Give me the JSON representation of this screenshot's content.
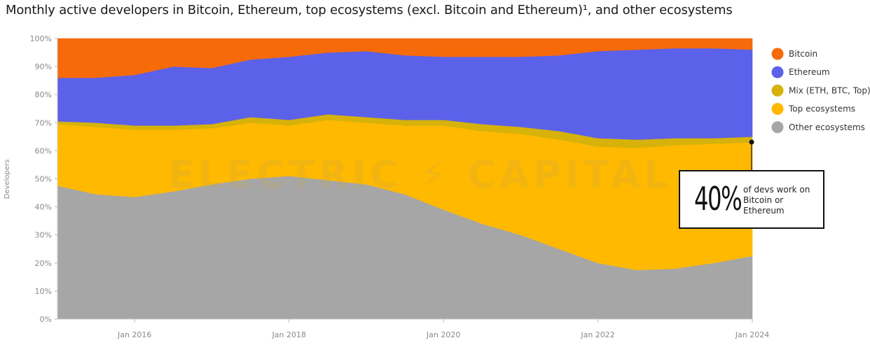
{
  "title": "Monthly active developers in Bitcoin, Ethereum, top ecosystems (excl. Bitcoin and Ethereum)¹, and other ecosystems",
  "watermark": "ELECTRIC ⚡ CAPITAL",
  "callout": {
    "value": "40%",
    "text": "of devs work on Bitcoin or Ethereum"
  },
  "colors": {
    "bitcoin": "#f76a0a",
    "ethereum": "#5b61e8",
    "mix": "#d6b20a",
    "top": "#ffb900",
    "other": "#a6a6a6"
  },
  "chart_data": {
    "type": "area",
    "stacked": true,
    "title": "Monthly active developers in Bitcoin, Ethereum, top ecosystems (excl. Bitcoin and Ethereum)¹, and other ecosystems",
    "xlabel": "",
    "ylabel": "Developers",
    "ylim": [
      0,
      100
    ],
    "y_ticks": [
      "0%",
      "10%",
      "20%",
      "30%",
      "40%",
      "50%",
      "60%",
      "70%",
      "80%",
      "90%",
      "100%"
    ],
    "x_ticks": [
      "Jan 2016",
      "Jan 2018",
      "Jan 2020",
      "Jan 2022",
      "Jan 2024"
    ],
    "x_range": [
      "2015-01",
      "2024-01"
    ],
    "legend_position": "right",
    "x": [
      "2015-01",
      "2015-07",
      "2016-01",
      "2016-07",
      "2017-01",
      "2017-07",
      "2018-01",
      "2018-07",
      "2019-01",
      "2019-07",
      "2020-01",
      "2020-07",
      "2021-01",
      "2021-07",
      "2022-01",
      "2022-07",
      "2023-01",
      "2023-07",
      "2024-01"
    ],
    "series": [
      {
        "name": "Other ecosystems",
        "values": [
          47.5,
          44.5,
          43.5,
          45.5,
          48,
          50,
          51,
          49.5,
          48,
          44.5,
          39,
          34,
          30,
          25,
          20,
          17.5,
          18,
          20,
          22.5
        ]
      },
      {
        "name": "Top ecosystems",
        "values": [
          22,
          24,
          24,
          22,
          20,
          20,
          18,
          21.5,
          22,
          24.5,
          30,
          33,
          36,
          39,
          41.5,
          43.5,
          44,
          42.5,
          40.5
        ]
      },
      {
        "name": "Mix (ETH, BTC, Top)",
        "values": [
          1,
          1.5,
          1.5,
          1.5,
          1.5,
          2,
          2,
          2,
          2,
          2,
          2,
          2.5,
          2.5,
          3,
          3,
          3,
          2.5,
          2,
          2
        ]
      },
      {
        "name": "Ethereum",
        "values": [
          15.5,
          16,
          18,
          21,
          20,
          20.5,
          22.5,
          22,
          23.5,
          23,
          22.5,
          24,
          25,
          27,
          31,
          32,
          32,
          32,
          31
        ]
      },
      {
        "name": "Bitcoin",
        "values": [
          14,
          14,
          13,
          10,
          10.5,
          7.5,
          6.5,
          5,
          4.5,
          6,
          6.5,
          6.5,
          6.5,
          6,
          4.5,
          4,
          3.5,
          3.5,
          4
        ]
      }
    ]
  }
}
